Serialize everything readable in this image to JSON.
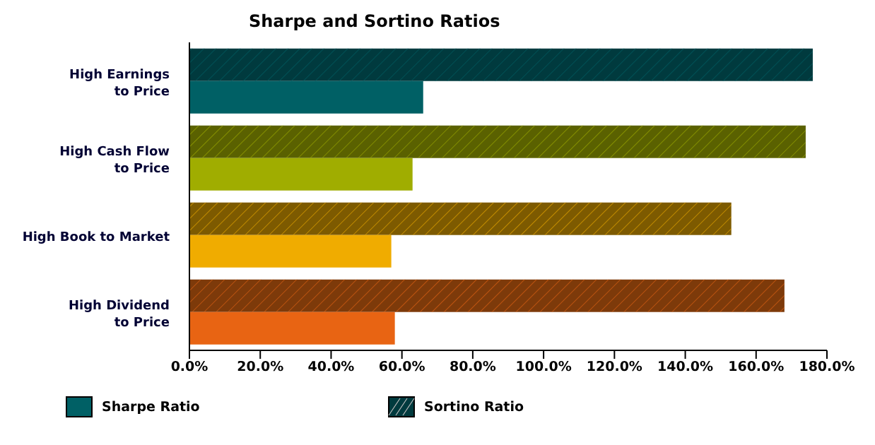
{
  "chart_data": {
    "type": "bar",
    "orientation": "horizontal",
    "title": "Sharpe and Sortino Ratios",
    "categories": [
      "High Earnings to Price",
      "High Cash Flow to Price",
      "High Book to Market",
      "High Dividend to Price"
    ],
    "series": [
      {
        "name": "Sharpe Ratio",
        "colors": [
          "#006065",
          "#a0ad00",
          "#f0ac00",
          "#e86413"
        ],
        "values": [
          66,
          63,
          57,
          58
        ]
      },
      {
        "name": "Sortino Ratio",
        "colors": [
          "#003a3e",
          "#5a6100",
          "#7d5a00",
          "#7d3a0a"
        ],
        "values": [
          176,
          174,
          153,
          168
        ]
      }
    ],
    "xlim": [
      0,
      180
    ],
    "xticks": [
      {
        "value": 0,
        "label": "0.0%"
      },
      {
        "value": 20,
        "label": "20.0%"
      },
      {
        "value": 40,
        "label": "40.0%"
      },
      {
        "value": 60,
        "label": "60.0%"
      },
      {
        "value": 80,
        "label": "80.0%"
      },
      {
        "value": 100,
        "label": "100.0%"
      },
      {
        "value": 120,
        "label": "120.0%"
      },
      {
        "value": 140,
        "label": "140.0%"
      },
      {
        "value": 160,
        "label": "160.0%"
      },
      {
        "value": 180,
        "label": "180.0%"
      }
    ],
    "grid": false,
    "legend": "bottom"
  }
}
